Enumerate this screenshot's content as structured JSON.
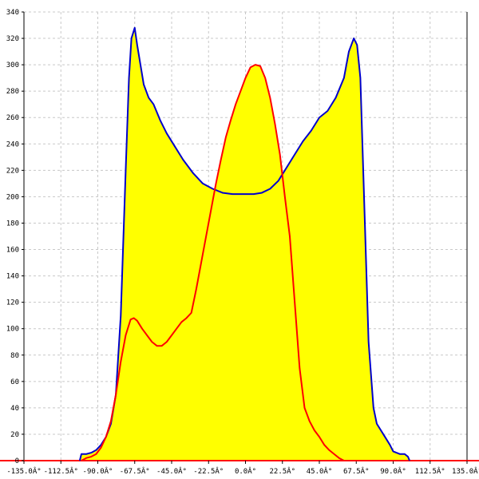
{
  "chart_data": {
    "type": "area",
    "title": "",
    "xlabel": "",
    "ylabel": "",
    "xlim": [
      -135,
      135
    ],
    "ylim": [
      0,
      340
    ],
    "grid": true,
    "x_ticks": [
      -135,
      -112.5,
      -90,
      -67.5,
      -45,
      -22.5,
      0,
      22.5,
      45,
      67.5,
      90,
      112.5,
      135
    ],
    "x_tick_labels": [
      "-135.0Â°",
      "-112.5Â°",
      "-90.0Â°",
      "-67.5Â°",
      "-45.0Â°",
      "-22.5Â°",
      "0.0Â°",
      "22.5Â°",
      "45.0Â°",
      "67.5Â°",
      "90.0Â°",
      "112.5Â°",
      "135.0Â°"
    ],
    "y_ticks": [
      0,
      20,
      40,
      60,
      80,
      100,
      120,
      140,
      160,
      180,
      200,
      220,
      240,
      260,
      280,
      300,
      320,
      340
    ],
    "y_tick_labels": [
      "0",
      "20",
      "40",
      "60",
      "80",
      "100",
      "120",
      "140",
      "160",
      "180",
      "200",
      "220",
      "240",
      "260",
      "280",
      "300",
      "320",
      "340"
    ],
    "colors": {
      "fill": "#ffff00",
      "series_1": "#0000cc",
      "series_2": "#ff0000",
      "baseline": "#ff0000",
      "grid": "#c8c8c8"
    },
    "series": [
      {
        "color": "#0000cc",
        "x": [
          -101,
          -100,
          -97,
          -94,
          -91,
          -88,
          -85,
          -82,
          -79,
          -76,
          -73,
          -71,
          -69.5,
          -67.5,
          -66,
          -64,
          -62,
          -59,
          -56,
          -52,
          -48,
          -44,
          -38,
          -32,
          -26,
          -20,
          -14,
          -8,
          -3,
          0,
          5,
          10,
          15,
          20,
          25,
          30,
          35,
          40,
          45,
          50,
          55,
          60,
          63,
          66,
          68,
          70,
          72,
          75,
          78,
          80,
          84,
          88,
          90,
          94,
          97,
          99,
          100
        ],
        "y": [
          0,
          5,
          5,
          6,
          8,
          12,
          18,
          28,
          50,
          110,
          220,
          290,
          320,
          328,
          315,
          300,
          285,
          275,
          270,
          258,
          248,
          240,
          228,
          218,
          210,
          206,
          203,
          202,
          202,
          202,
          202,
          203,
          206,
          212,
          222,
          232,
          242,
          250,
          260,
          265,
          275,
          290,
          310,
          320,
          315,
          290,
          210,
          90,
          40,
          28,
          20,
          12,
          7,
          5,
          5,
          3,
          0
        ]
      },
      {
        "color": "#ff0000",
        "x": [
          -100,
          -97,
          -94,
          -91,
          -88,
          -85,
          -82,
          -79,
          -76,
          -73,
          -70,
          -68,
          -66,
          -63,
          -60,
          -57,
          -54,
          -51,
          -48,
          -45,
          -42,
          -39,
          -36,
          -33,
          -30,
          -27,
          -24,
          -21,
          -18,
          -15,
          -12,
          -9,
          -6,
          -3,
          0,
          3,
          6,
          9,
          12,
          15,
          18,
          21,
          24,
          27,
          30,
          33,
          36,
          39,
          42,
          45,
          48,
          51,
          54,
          57,
          60,
          63,
          66,
          69,
          72,
          75,
          78,
          81,
          84,
          87,
          90,
          93,
          96
        ],
        "y": [
          0,
          2,
          3,
          5,
          10,
          18,
          30,
          50,
          75,
          95,
          107,
          108,
          106,
          100,
          95,
          90,
          87,
          87,
          90,
          95,
          100,
          105,
          108,
          112,
          130,
          150,
          170,
          190,
          210,
          228,
          245,
          258,
          270,
          280,
          290,
          298,
          300,
          299,
          290,
          275,
          255,
          232,
          200,
          170,
          120,
          70,
          40,
          30,
          23,
          18,
          12,
          8,
          5,
          2,
          0,
          0,
          0,
          0,
          0,
          0,
          0,
          0,
          0,
          0,
          0,
          0,
          0
        ]
      }
    ]
  }
}
